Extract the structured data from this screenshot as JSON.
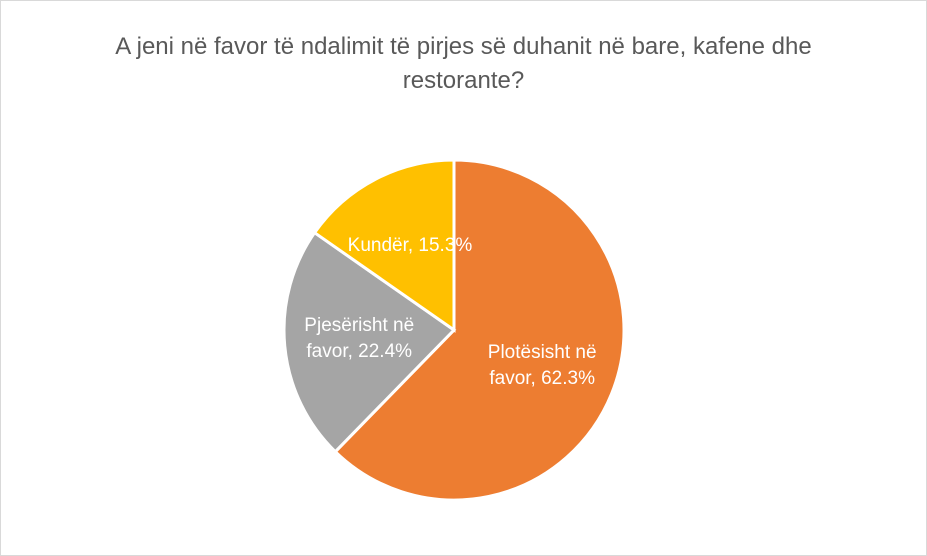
{
  "chart_data": {
    "type": "pie",
    "title": "A jeni në favor të ndalimit të pirjes së duhanit në bare, kafene dhe restorante?",
    "values": [
      62.3,
      22.4,
      15.3
    ],
    "value_labels": [
      "Plotësisht në favor, 62.3%",
      "Pjesërisht në favor, 22.4%",
      "Kundër, 15.3%"
    ],
    "colors": [
      "#ed7d31",
      "#a5a5a5",
      "#ffc000"
    ]
  }
}
